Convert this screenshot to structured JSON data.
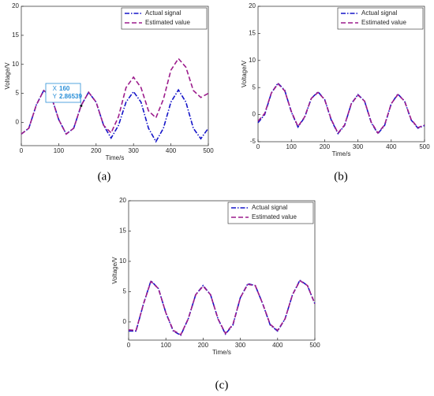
{
  "chart_data": [
    {
      "type": "line",
      "panel_label": "(a)",
      "xlabel": "Time/s",
      "ylabel": "Voltage/V",
      "x": [
        0,
        20,
        40,
        60,
        80,
        100,
        120,
        140,
        160,
        180,
        200,
        220,
        240,
        260,
        280,
        300,
        320,
        340,
        360,
        380,
        400,
        420,
        440,
        460,
        480,
        500
      ],
      "xlim": [
        0,
        500
      ],
      "xticks": [
        0,
        100,
        200,
        300,
        400,
        500
      ],
      "ylim": [
        -4,
        20
      ],
      "yticks": [
        0,
        5,
        10,
        15,
        20
      ],
      "legend": "upper right",
      "series": [
        {
          "name": "Actual signal",
          "color": "#1414c8",
          "dash": "dashdot",
          "values": [
            -2,
            -1,
            3,
            5.5,
            4.5,
            0.5,
            -2,
            -1,
            2.9,
            5.2,
            3.5,
            -0.5,
            -2.7,
            -0.5,
            3.5,
            5.3,
            3.5,
            -1,
            -3.3,
            -1,
            3.5,
            5.6,
            3.5,
            -1,
            -2.8,
            -1
          ]
        },
        {
          "name": "Estimated value",
          "color": "#9c1c8c",
          "dash": "dashed",
          "values": [
            -2,
            -1,
            3,
            5.5,
            4.5,
            0.5,
            -2,
            -1,
            2.9,
            5.2,
            3.5,
            -0.5,
            -1.8,
            1,
            6,
            7.8,
            6,
            2,
            0.8,
            4,
            9,
            11,
            9.5,
            5.5,
            4.3,
            5
          ]
        }
      ],
      "datatip": {
        "x": 160,
        "y": 2.86539,
        "x_label": "X",
        "x_text": "160",
        "y_label": "Y",
        "y_text": "2.86539"
      }
    },
    {
      "type": "line",
      "panel_label": "(b)",
      "xlabel": "Time/s",
      "ylabel": "Voltage/V",
      "x": [
        0,
        20,
        40,
        60,
        80,
        100,
        120,
        140,
        160,
        180,
        200,
        220,
        240,
        260,
        280,
        300,
        320,
        340,
        360,
        380,
        400,
        420,
        440,
        460,
        480,
        500
      ],
      "xlim": [
        0,
        500
      ],
      "xticks": [
        0,
        100,
        200,
        300,
        400,
        500
      ],
      "ylim": [
        -5,
        20
      ],
      "yticks": [
        -5,
        0,
        5,
        10,
        15,
        20
      ],
      "legend": "upper right",
      "series": [
        {
          "name": "Actual signal",
          "color": "#1414c8",
          "dash": "dashdot",
          "values": [
            -1.5,
            0,
            4,
            5.8,
            4.5,
            0.5,
            -2.3,
            -0.5,
            3,
            4.2,
            2.8,
            -1,
            -3.5,
            -2,
            2,
            3.7,
            2.5,
            -1.5,
            -3.5,
            -2,
            2,
            3.8,
            2.5,
            -1,
            -2.5,
            -2
          ]
        },
        {
          "name": "Estimated value",
          "color": "#9c1c8c",
          "dash": "dashed",
          "values": [
            -1.2,
            0.2,
            4,
            5.7,
            4.4,
            0.6,
            -2.2,
            -0.4,
            3,
            4.1,
            2.8,
            -0.9,
            -3.4,
            -1.9,
            2,
            3.6,
            2.5,
            -1.4,
            -3.4,
            -1.9,
            2,
            3.7,
            2.5,
            -0.9,
            -2.4,
            -1.9
          ]
        }
      ]
    },
    {
      "type": "line",
      "panel_label": "(c)",
      "xlabel": "Time/s",
      "ylabel": "Voltage/V",
      "x": [
        0,
        20,
        40,
        60,
        80,
        100,
        120,
        140,
        160,
        180,
        200,
        220,
        240,
        260,
        280,
        300,
        320,
        340,
        360,
        380,
        400,
        420,
        440,
        460,
        480,
        500
      ],
      "xlim": [
        0,
        500
      ],
      "xticks": [
        0,
        100,
        200,
        300,
        400,
        500
      ],
      "ylim": [
        -3,
        20
      ],
      "yticks": [
        0,
        5,
        10,
        15,
        20
      ],
      "legend": "upper right",
      "series": [
        {
          "name": "Actual signal",
          "color": "#1414c8",
          "dash": "dashdot",
          "values": [
            -1.5,
            -1.5,
            3,
            6.8,
            5.5,
            1.5,
            -1.5,
            -2.2,
            0.5,
            4.5,
            6,
            4.5,
            0.5,
            -2,
            -0.5,
            4,
            6.3,
            6,
            3,
            -0.5,
            -1.5,
            0.5,
            4.5,
            6.9,
            6,
            3
          ]
        },
        {
          "name": "Estimated value",
          "color": "#9c1c8c",
          "dash": "dashed",
          "values": [
            -1.3,
            -1.4,
            3,
            6.7,
            5.5,
            1.5,
            -1.4,
            -2.1,
            0.5,
            4.5,
            5.9,
            4.5,
            0.5,
            -1.9,
            -0.4,
            4,
            6.2,
            6,
            3,
            -0.4,
            -1.4,
            0.5,
            4.5,
            6.8,
            6,
            3
          ]
        }
      ]
    }
  ]
}
